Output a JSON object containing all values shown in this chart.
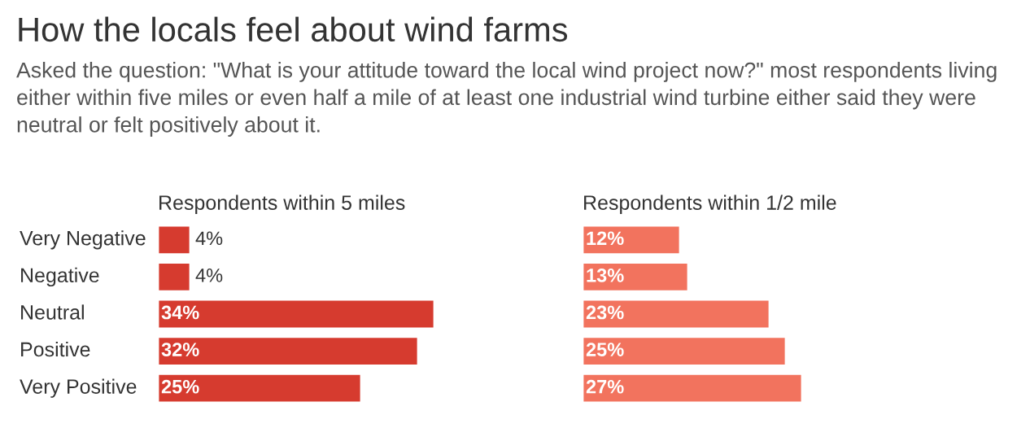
{
  "chart_data": [
    {
      "type": "other",
      "title": "How the locals feel about wind farms",
      "subtitle": "Asked the question: \"What is your attitude toward the local wind project now?\" most respondents living either within five miles or even half a mile of at least one industrial wind turbine either said they were neutral or felt positively about it."
    },
    {
      "type": "bar",
      "orientation": "horizontal",
      "title": "Respondents within 5 miles",
      "categories": [
        "Very Negative",
        "Negative",
        "Neutral",
        "Positive",
        "Very Positive"
      ],
      "values": [
        4,
        4,
        34,
        32,
        25
      ],
      "value_labels": [
        "4%",
        "4%",
        "34%",
        "32%",
        "25%"
      ],
      "color": "#d63b2f",
      "tick_labels": "y"
    },
    {
      "type": "bar",
      "orientation": "horizontal",
      "title": "Respondents within 1/2 mile",
      "categories": [
        null,
        null,
        null,
        null,
        null
      ],
      "values": [
        12,
        13,
        23,
        25,
        27
      ],
      "value_labels": [
        "12%",
        "13%",
        "23%",
        "25%",
        "27%"
      ],
      "color": "#f2735e",
      "tick_labels": false
    }
  ]
}
